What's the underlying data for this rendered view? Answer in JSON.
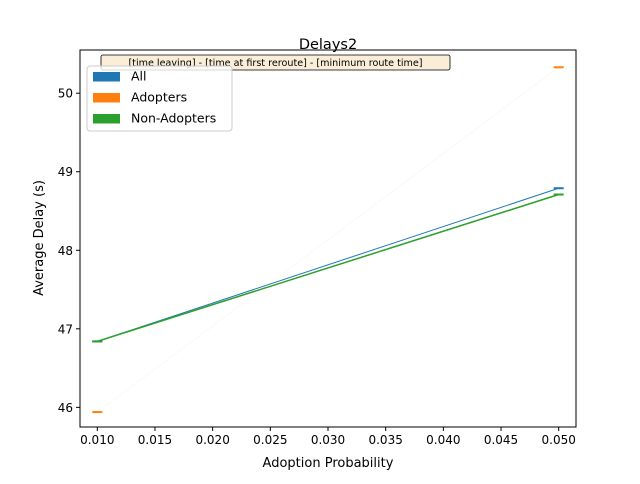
{
  "chart_data": {
    "type": "line",
    "title": "Delays2",
    "xlabel": "Adoption Probability",
    "ylabel": "Average Delay (s)",
    "annotation": "[time leaving] - [time at first reroute] - [minimum route time]",
    "xlim": [
      0.0085,
      0.0515
    ],
    "ylim": [
      45.75,
      50.55
    ],
    "xticks": [
      "0.010",
      "0.015",
      "0.020",
      "0.025",
      "0.030",
      "0.035",
      "0.040",
      "0.045",
      "0.050"
    ],
    "yticks": [
      "46",
      "47",
      "48",
      "49",
      "50"
    ],
    "legend_position": "top-left",
    "x": [
      0.01,
      0.05
    ],
    "series": [
      {
        "name": "All",
        "color": "#1f77b4",
        "values": [
          46.84,
          48.79
        ]
      },
      {
        "name": "Adopters",
        "color": "#ff7f0e",
        "values": [
          45.94,
          50.33
        ]
      },
      {
        "name": "Non-Adopters",
        "color": "#2ca02c",
        "values": [
          46.84,
          48.71
        ]
      }
    ]
  }
}
